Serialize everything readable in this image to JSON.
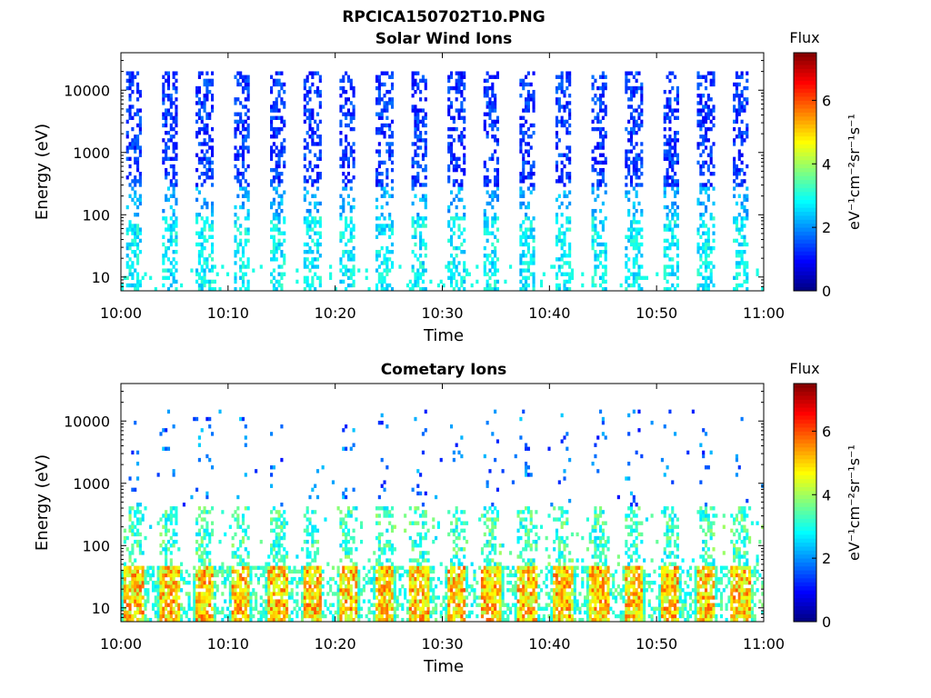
{
  "figure_title": "RPCICA150702T10.PNG",
  "chart_data": [
    {
      "type": "heatmap",
      "title": "Solar Wind Ions",
      "xlabel": "Time",
      "ylabel": "Energy (eV)",
      "x_ticks": [
        "10:00",
        "10:10",
        "10:20",
        "10:30",
        "10:40",
        "10:50",
        "11:00"
      ],
      "x_range": [
        "10:00",
        "11:00"
      ],
      "y_scale": "log",
      "y_ticks": [
        "10",
        "100",
        "1000",
        "10000"
      ],
      "y_range": [
        6,
        40000
      ],
      "colorbar": {
        "title": "Flux",
        "label": "eV⁻¹cm⁻²sr⁻¹s⁻¹",
        "ticks": [
          "0",
          "2",
          "4",
          "6"
        ],
        "range": [
          0,
          7.5
        ],
        "colormap": "jet"
      },
      "sweep_times_min": [
        1.2,
        4.5,
        7.8,
        11.2,
        14.6,
        17.9,
        21.2,
        24.6,
        27.9,
        31.3,
        34.6,
        37.9,
        41.3,
        44.6,
        47.9,
        51.3,
        54.6,
        57.9
      ],
      "features": {
        "high_energy_band_eV": [
          300,
          20000
        ],
        "high_energy_flux": [
          0.8,
          1.8
        ],
        "low_energy_band_eV": [
          6,
          100
        ],
        "low_energy_flux": [
          2.2,
          3.3
        ]
      }
    },
    {
      "type": "heatmap",
      "title": "Cometary Ions",
      "xlabel": "Time",
      "ylabel": "Energy (eV)",
      "x_ticks": [
        "10:00",
        "10:10",
        "10:20",
        "10:30",
        "10:40",
        "10:50",
        "11:00"
      ],
      "x_range": [
        "10:00",
        "11:00"
      ],
      "y_scale": "log",
      "y_ticks": [
        "10",
        "100",
        "1000",
        "10000"
      ],
      "y_range": [
        6,
        40000
      ],
      "colorbar": {
        "title": "Flux",
        "label": "eV⁻¹cm⁻²sr⁻¹s⁻¹",
        "ticks": [
          "0",
          "2",
          "4",
          "6"
        ],
        "range": [
          0,
          7.5
        ],
        "colormap": "jet"
      },
      "sweep_times_min": [
        1.2,
        4.5,
        7.8,
        11.2,
        14.6,
        17.9,
        21.2,
        24.6,
        27.9,
        31.3,
        34.6,
        37.9,
        41.3,
        44.6,
        47.9,
        51.3,
        54.6,
        57.9
      ],
      "features": {
        "core_band_eV": [
          6,
          45
        ],
        "core_flux": [
          4.0,
          6.0
        ],
        "mid_band_eV": [
          45,
          400
        ],
        "mid_flux": [
          2.5,
          4.0
        ],
        "sparse_high_eV": [
          400,
          15000
        ],
        "sparse_flux": [
          1.0,
          2.5
        ]
      }
    }
  ]
}
